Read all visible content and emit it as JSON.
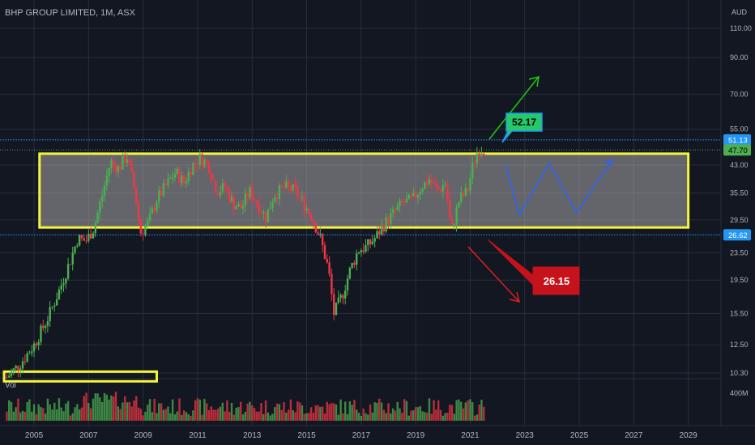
{
  "header": {
    "title": "BHP GROUP LIMITED, 1M, ASX",
    "currency": "AUD",
    "volume_label": "Vol"
  },
  "colors": {
    "up": "#26a69a",
    "down": "#ef5350",
    "green_candle": "#4caf50",
    "red_candle": "#f23645",
    "box": "#f5f53c",
    "blue_line": "#2962ff",
    "green_arrow": "#21c90e",
    "red_arrow": "#e0201b",
    "hline": "#2196f3"
  },
  "chart_data": {
    "type": "candlestick",
    "title": "BHP GROUP LIMITED, 1M, ASX",
    "x_axis": {
      "ticks": [
        "2005",
        "2007",
        "2009",
        "2011",
        "2013",
        "2015",
        "2017",
        "2019",
        "2021",
        "2023",
        "2025",
        "2027",
        "2029"
      ]
    },
    "y_axis": {
      "scale": "log",
      "unit": "AUD",
      "ticks": [
        "110.00",
        "90.00",
        "70.00",
        "55.00",
        "43.00",
        "35.50",
        "29.50",
        "23.50",
        "19.50",
        "15.50",
        "12.50",
        "10.30"
      ],
      "range": [
        9.8,
        130
      ]
    },
    "volume_axis": {
      "ticks": [
        "400M"
      ]
    },
    "price_labels": {
      "resistance": "51.13",
      "last": "47.70",
      "support": "26.62"
    },
    "horizontal_lines": [
      {
        "value": 51.13
      },
      {
        "value": 26.62
      }
    ],
    "range_box": {
      "x_start": 2005.2,
      "x_end": 2029.0,
      "top": 46.5,
      "bottom": 28.0
    },
    "small_box": {
      "x_start": 2003.9,
      "x_end": 2009.5,
      "value": 10.4
    },
    "callouts": [
      {
        "text": "52.17",
        "color": "green"
      },
      {
        "text": "26.15",
        "color": "red"
      }
    ],
    "projection_path": [
      [
        2022.3,
        43.0
      ],
      [
        2022.8,
        30.5
      ],
      [
        2023.9,
        43.5
      ],
      [
        2024.9,
        31.0
      ],
      [
        2026.2,
        44.5
      ]
    ],
    "anchors": [
      [
        2004.0,
        10.0
      ],
      [
        2004.5,
        11.0
      ],
      [
        2005.0,
        12.5
      ],
      [
        2005.5,
        15.0
      ],
      [
        2005.9,
        18.0
      ],
      [
        2006.3,
        22.0
      ],
      [
        2006.6,
        26.0
      ],
      [
        2006.9,
        25.5
      ],
      [
        2007.2,
        28.0
      ],
      [
        2007.5,
        35.0
      ],
      [
        2007.8,
        44.0
      ],
      [
        2008.1,
        42.0
      ],
      [
        2008.4,
        46.0
      ],
      [
        2008.7,
        36.0
      ],
      [
        2008.9,
        27.0
      ],
      [
        2009.2,
        29.0
      ],
      [
        2009.5,
        34.0
      ],
      [
        2009.9,
        38.0
      ],
      [
        2010.2,
        41.0
      ],
      [
        2010.5,
        38.0
      ],
      [
        2010.8,
        43.0
      ],
      [
        2011.1,
        45.0
      ],
      [
        2011.4,
        43.0
      ],
      [
        2011.7,
        36.0
      ],
      [
        2012.0,
        37.0
      ],
      [
        2012.3,
        33.0
      ],
      [
        2012.6,
        32.0
      ],
      [
        2012.9,
        36.0
      ],
      [
        2013.2,
        33.0
      ],
      [
        2013.5,
        30.0
      ],
      [
        2013.8,
        35.0
      ],
      [
        2014.2,
        37.0
      ],
      [
        2014.6,
        36.0
      ],
      [
        2014.9,
        33.0
      ],
      [
        2015.2,
        30.0
      ],
      [
        2015.5,
        26.0
      ],
      [
        2015.8,
        21.0
      ],
      [
        2016.0,
        15.5
      ],
      [
        2016.3,
        17.5
      ],
      [
        2016.6,
        21.0
      ],
      [
        2016.9,
        24.0
      ],
      [
        2017.2,
        24.5
      ],
      [
        2017.5,
        26.0
      ],
      [
        2017.9,
        29.0
      ],
      [
        2018.2,
        31.0
      ],
      [
        2018.5,
        33.0
      ],
      [
        2018.9,
        34.0
      ],
      [
        2019.2,
        37.0
      ],
      [
        2019.5,
        39.0
      ],
      [
        2019.8,
        36.0
      ],
      [
        2020.1,
        38.0
      ],
      [
        2020.3,
        27.0
      ],
      [
        2020.6,
        34.0
      ],
      [
        2020.9,
        36.0
      ],
      [
        2021.1,
        43.0
      ],
      [
        2021.3,
        48.0
      ],
      [
        2021.5,
        47.7
      ]
    ],
    "volume_series": "monthly volume bars, up-months green, down-months red"
  }
}
